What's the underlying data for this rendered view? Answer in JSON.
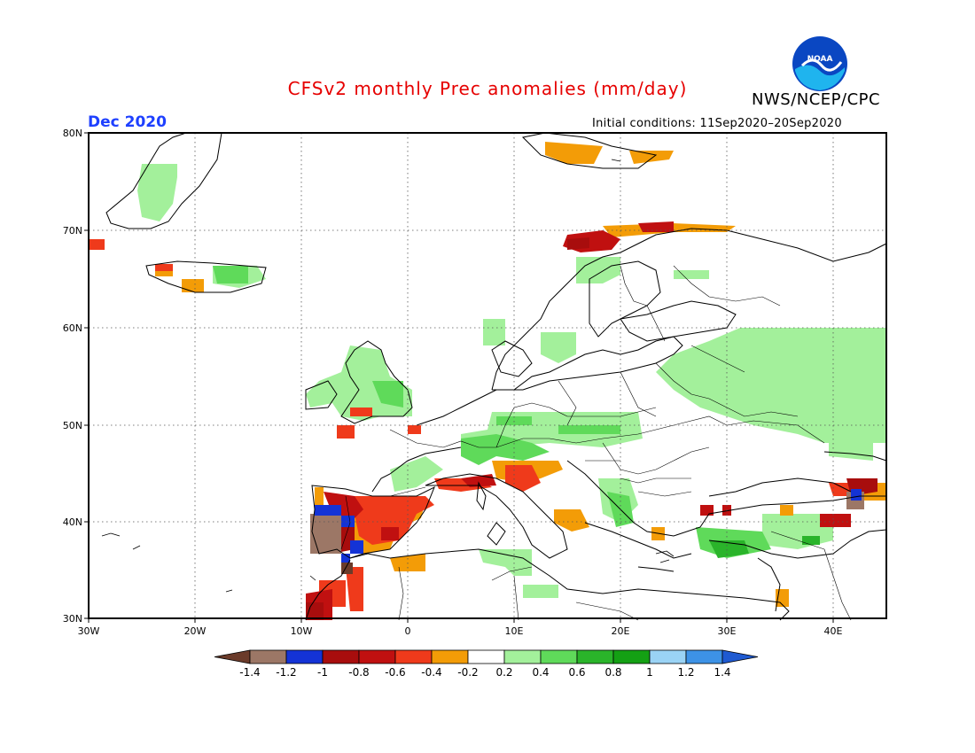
{
  "header": {
    "title": "CFSv2 monthly Prec anomalies (mm/day)",
    "organization": "NWS/NCEP/CPC",
    "logo_text": "NOAA",
    "month": "Dec 2020",
    "initial_conditions": "Initial conditions: 11Sep2020–20Sep2020"
  },
  "colors": {
    "title": "#e60000",
    "month": "#1e40ff",
    "logo_blue": "#0a47c2",
    "logo_cyan": "#1fb4ee"
  },
  "map": {
    "lat_labels": [
      "80N",
      "70N",
      "60N",
      "50N",
      "40N",
      "30N"
    ],
    "lon_labels": [
      "30W",
      "20W",
      "10W",
      "0",
      "10E",
      "20E",
      "30E",
      "40E"
    ]
  },
  "legend": {
    "labels": [
      "-1.4",
      "-1.2",
      "-1",
      "-0.8",
      "-0.6",
      "-0.4",
      "-0.2",
      "0.2",
      "0.4",
      "0.6",
      "0.8",
      "1",
      "1.2",
      "1.4"
    ],
    "colors": [
      "#6b3b2a",
      "#9c7766",
      "#1433d6",
      "#a80d0d",
      "#c01010",
      "#ef3a1b",
      "#f39c07",
      "#ffffff",
      "#a3f09b",
      "#5fda5a",
      "#2ab42a",
      "#14a014",
      "#9ad3f5",
      "#3d92e6",
      "#1f5ad1"
    ]
  }
}
